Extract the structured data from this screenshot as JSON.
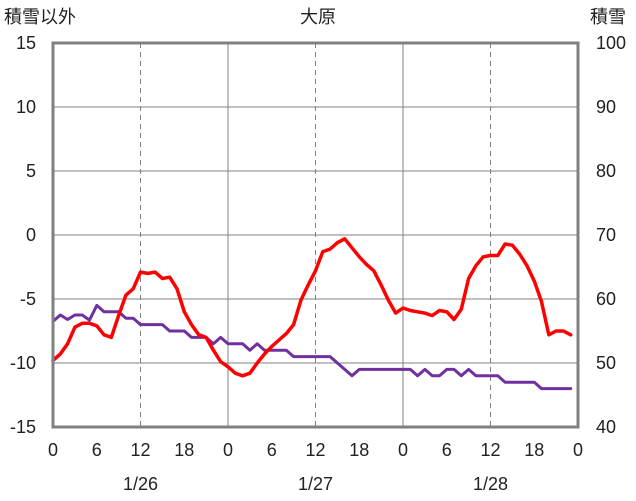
{
  "chart_data": {
    "type": "line",
    "title": "大原",
    "left_axis_label": "積雪以外",
    "right_axis_label": "積雪",
    "left_ylim": [
      -15,
      15
    ],
    "left_ticks": [
      "15",
      "10",
      "5",
      "0",
      "-5",
      "-10",
      "-15"
    ],
    "right_ylim": [
      40,
      100
    ],
    "right_ticks": [
      "100",
      "90",
      "80",
      "70",
      "60",
      "50",
      "40"
    ],
    "x_tick_labels": [
      "0",
      "6",
      "12",
      "18",
      "0",
      "6",
      "12",
      "18",
      "0",
      "6",
      "12",
      "18",
      "0"
    ],
    "x_tick_hours": [
      0,
      6,
      12,
      18,
      24,
      30,
      36,
      42,
      48,
      54,
      60,
      66,
      72
    ],
    "dates": [
      {
        "label": "1/26",
        "hour": 12
      },
      {
        "label": "1/27",
        "hour": 36
      },
      {
        "label": "1/28",
        "hour": 60
      }
    ],
    "grid": {
      "solid_at_hours": [
        24,
        48
      ],
      "dashed_at_hours": [
        12,
        36,
        60
      ]
    },
    "colors": {
      "temperature": "#ff0000",
      "snow_depth": "#7030a0",
      "frame": "#808080",
      "grid": "#808080"
    },
    "series": [
      {
        "key": "temperature",
        "axis": "left",
        "x": [
          0,
          1,
          2,
          3,
          4,
          5,
          6,
          7,
          8,
          9,
          10,
          11,
          12,
          13,
          14,
          15,
          16,
          17,
          18,
          19,
          20,
          21,
          22,
          23,
          24,
          25,
          26,
          27,
          28,
          29,
          30,
          31,
          32,
          33,
          34,
          35,
          36,
          37,
          38,
          39,
          40,
          41,
          42,
          43,
          44,
          45,
          46,
          47,
          48,
          49,
          50,
          51,
          52,
          53,
          54,
          55,
          56,
          57,
          58,
          59,
          60,
          61,
          62,
          63,
          64,
          65,
          66,
          67,
          68,
          69,
          70,
          71
        ],
        "values": [
          -9.8,
          -9.3,
          -8.5,
          -7.2,
          -6.9,
          -6.9,
          -7.1,
          -7.8,
          -8,
          -6.3,
          -4.7,
          -4.2,
          -2.9,
          -3.0,
          -2.9,
          -3.4,
          -3.3,
          -4.2,
          -6.0,
          -7.0,
          -7.8,
          -8.0,
          -9.0,
          -9.9,
          -10.3,
          -10.8,
          -11.0,
          -10.8,
          -10.0,
          -9.3,
          -8.7,
          -8.2,
          -7.7,
          -7.0,
          -5.1,
          -3.9,
          -2.8,
          -1.3,
          -1.1,
          -0.6,
          -0.3,
          -1.0,
          -1.7,
          -2.3,
          -2.8,
          -3.9,
          -5.1,
          -6.1,
          -5.7,
          -5.9,
          -6.0,
          -6.1,
          -6.3,
          -5.9,
          -6.0,
          -6.6,
          -5.8,
          -3.4,
          -2.4,
          -1.7,
          -1.6,
          -1.6,
          -0.7,
          -0.8,
          -1.5,
          -2.4,
          -3.6,
          -5.2,
          -7.8,
          -7.5,
          -7.5,
          -7.8
        ]
      },
      {
        "key": "snow_depth",
        "axis": "right",
        "x": [
          0,
          1,
          2,
          3,
          4,
          5,
          6,
          7,
          8,
          9,
          10,
          11,
          12,
          13,
          14,
          15,
          16,
          17,
          18,
          19,
          20,
          21,
          22,
          23,
          24,
          25,
          26,
          27,
          28,
          29,
          30,
          31,
          32,
          33,
          34,
          35,
          36,
          37,
          38,
          39,
          40,
          41,
          42,
          43,
          44,
          45,
          46,
          47,
          48,
          49,
          50,
          51,
          52,
          53,
          54,
          55,
          56,
          57,
          58,
          59,
          60,
          61,
          62,
          63,
          64,
          65,
          66,
          67,
          68,
          69,
          70,
          71
        ],
        "values": [
          56.5,
          57.5,
          56.8,
          57.5,
          57.5,
          56.7,
          59,
          58,
          58,
          58,
          57,
          57,
          56,
          56,
          56,
          56,
          55,
          55,
          55,
          54,
          54,
          54,
          53,
          54,
          53,
          53,
          53,
          52,
          53,
          52,
          52,
          52,
          52,
          51,
          51,
          51,
          51,
          51,
          51,
          50,
          49,
          48,
          49,
          49,
          49,
          49,
          49,
          49,
          49,
          49,
          48,
          49,
          48,
          48,
          49,
          49,
          48,
          49,
          48,
          48,
          48,
          48,
          47,
          47,
          47,
          47,
          47,
          46,
          46,
          46,
          46,
          46
        ]
      }
    ]
  }
}
